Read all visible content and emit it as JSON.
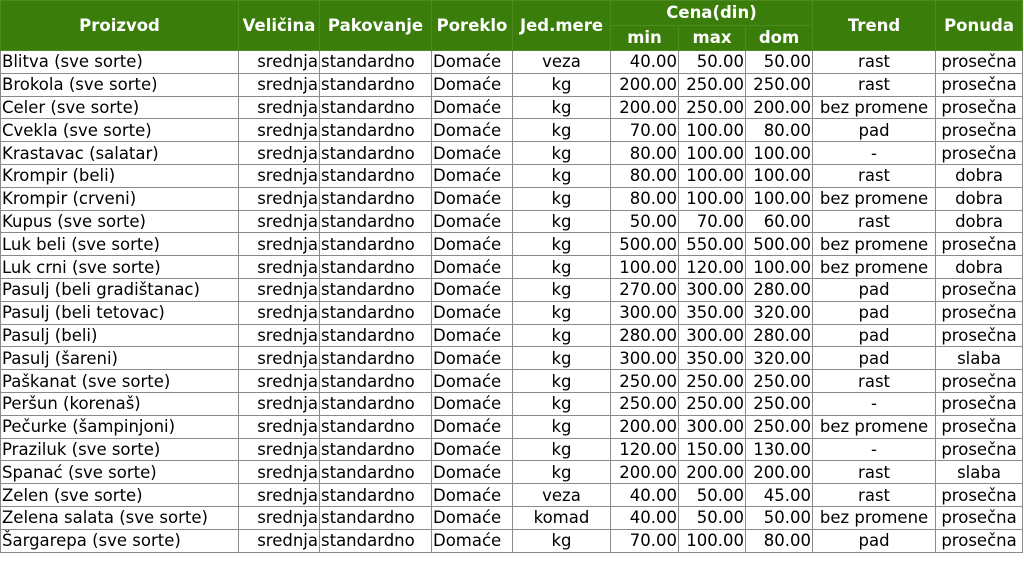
{
  "header": {
    "product": "Proizvod",
    "size": "Veličina",
    "packaging": "Pakovanje",
    "origin": "Poreklo",
    "unit": "Jed.mere",
    "price": "Cena(din)",
    "min": "min",
    "max": "max",
    "dom": "dom",
    "trend": "Trend",
    "supply": "Ponuda"
  },
  "colors": {
    "header_bg": "#3a7d0a",
    "header_text": "#ffffff",
    "grid": "#8a8a8a"
  },
  "rows": [
    [
      "Blitva (sve sorte)",
      "srednja",
      "standardno",
      "Domaće",
      "veza",
      "40.00",
      "50.00",
      "50.00",
      "rast",
      "prosečna"
    ],
    [
      "Brokola (sve sorte)",
      "srednja",
      "standardno",
      "Domaće",
      "kg",
      "200.00",
      "250.00",
      "250.00",
      "rast",
      "prosečna"
    ],
    [
      "Celer (sve sorte)",
      "srednja",
      "standardno",
      "Domaće",
      "kg",
      "200.00",
      "250.00",
      "200.00",
      "bez promene",
      "prosečna"
    ],
    [
      "Cvekla (sve sorte)",
      "srednja",
      "standardno",
      "Domaće",
      "kg",
      "70.00",
      "100.00",
      "80.00",
      "pad",
      "prosečna"
    ],
    [
      "Krastavac (salatar)",
      "srednja",
      "standardno",
      "Domaće",
      "kg",
      "80.00",
      "100.00",
      "100.00",
      "-",
      "prosečna"
    ],
    [
      "Krompir (beli)",
      "srednja",
      "standardno",
      "Domaće",
      "kg",
      "80.00",
      "100.00",
      "100.00",
      "rast",
      "dobra"
    ],
    [
      "Krompir (crveni)",
      "srednja",
      "standardno",
      "Domaće",
      "kg",
      "80.00",
      "100.00",
      "100.00",
      "bez promene",
      "dobra"
    ],
    [
      "Kupus (sve sorte)",
      "srednja",
      "standardno",
      "Domaće",
      "kg",
      "50.00",
      "70.00",
      "60.00",
      "rast",
      "dobra"
    ],
    [
      "Luk beli (sve sorte)",
      "srednja",
      "standardno",
      "Domaće",
      "kg",
      "500.00",
      "550.00",
      "500.00",
      "bez promene",
      "prosečna"
    ],
    [
      "Luk crni (sve sorte)",
      "srednja",
      "standardno",
      "Domaće",
      "kg",
      "100.00",
      "120.00",
      "100.00",
      "bez promene",
      "dobra"
    ],
    [
      "Pasulj (beli gradištanac)",
      "srednja",
      "standardno",
      "Domaće",
      "kg",
      "270.00",
      "300.00",
      "280.00",
      "pad",
      "prosečna"
    ],
    [
      "Pasulj (beli tetovac)",
      "srednja",
      "standardno",
      "Domaće",
      "kg",
      "300.00",
      "350.00",
      "320.00",
      "pad",
      "prosečna"
    ],
    [
      "Pasulj (beli)",
      "srednja",
      "standardno",
      "Domaće",
      "kg",
      "280.00",
      "300.00",
      "280.00",
      "pad",
      "prosečna"
    ],
    [
      "Pasulj (šareni)",
      "srednja",
      "standardno",
      "Domaće",
      "kg",
      "300.00",
      "350.00",
      "320.00",
      "pad",
      "slaba"
    ],
    [
      "Paškanat (sve sorte)",
      "srednja",
      "standardno",
      "Domaće",
      "kg",
      "250.00",
      "250.00",
      "250.00",
      "rast",
      "prosečna"
    ],
    [
      "Peršun (korenaš)",
      "srednja",
      "standardno",
      "Domaće",
      "kg",
      "250.00",
      "250.00",
      "250.00",
      "-",
      "prosečna"
    ],
    [
      "Pečurke (šampinjoni)",
      "srednja",
      "standardno",
      "Domaće",
      "kg",
      "200.00",
      "300.00",
      "250.00",
      "bez promene",
      "prosečna"
    ],
    [
      "Praziluk (sve sorte)",
      "srednja",
      "standardno",
      "Domaće",
      "kg",
      "120.00",
      "150.00",
      "130.00",
      "-",
      "prosečna"
    ],
    [
      "Spanać (sve sorte)",
      "srednja",
      "standardno",
      "Domaće",
      "kg",
      "200.00",
      "200.00",
      "200.00",
      "rast",
      "slaba"
    ],
    [
      "Zelen (sve sorte)",
      "srednja",
      "standardno",
      "Domaće",
      "veza",
      "40.00",
      "50.00",
      "45.00",
      "rast",
      "prosečna"
    ],
    [
      "Zelena salata (sve sorte)",
      "srednja",
      "standardno",
      "Domaće",
      "komad",
      "40.00",
      "50.00",
      "50.00",
      "bez promene",
      "prosečna"
    ],
    [
      "Šargarepa (sve sorte)",
      "srednja",
      "standardno",
      "Domaće",
      "kg",
      "70.00",
      "100.00",
      "80.00",
      "pad",
      "prosečna"
    ]
  ]
}
